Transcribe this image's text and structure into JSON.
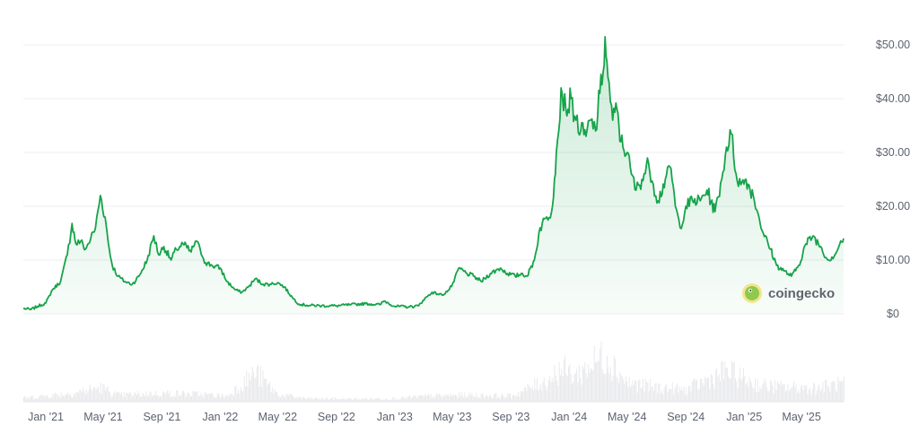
{
  "chart_data": {
    "type": "area",
    "y_axis_side": "right",
    "ylim": [
      0,
      55
    ],
    "y_ticks": [
      {
        "value": 0,
        "label": "$0"
      },
      {
        "value": 10,
        "label": "$10.00"
      },
      {
        "value": 20,
        "label": "$20.00"
      },
      {
        "value": 30,
        "label": "$30.00"
      },
      {
        "value": 40,
        "label": "$40.00"
      },
      {
        "value": 50,
        "label": "$50.00"
      }
    ],
    "x_ticks": [
      {
        "date": "2021-01-01",
        "label": "Jan '21"
      },
      {
        "date": "2021-05-01",
        "label": "May '21"
      },
      {
        "date": "2021-09-01",
        "label": "Sep '21"
      },
      {
        "date": "2022-01-01",
        "label": "Jan '22"
      },
      {
        "date": "2022-05-01",
        "label": "May '22"
      },
      {
        "date": "2022-09-01",
        "label": "Sep '22"
      },
      {
        "date": "2023-01-01",
        "label": "Jan '23"
      },
      {
        "date": "2023-05-01",
        "label": "May '23"
      },
      {
        "date": "2023-09-01",
        "label": "Sep '23"
      },
      {
        "date": "2024-01-01",
        "label": "Jan '24"
      },
      {
        "date": "2024-05-01",
        "label": "May '24"
      },
      {
        "date": "2024-09-01",
        "label": "Sep '24"
      },
      {
        "date": "2025-01-01",
        "label": "Jan '25"
      },
      {
        "date": "2025-05-01",
        "label": "May '25"
      }
    ],
    "xlim": [
      "2020-11-15",
      "2025-07-28"
    ],
    "grid": true,
    "legend": "none",
    "series": [
      {
        "color": "#16a34a",
        "points": [
          [
            "2020-11-15",
            1.0
          ],
          [
            "2020-12-01",
            0.8
          ],
          [
            "2020-12-15",
            1.4
          ],
          [
            "2021-01-01",
            2.0
          ],
          [
            "2021-01-15",
            4.5
          ],
          [
            "2021-02-01",
            6.0
          ],
          [
            "2021-02-15",
            11.0
          ],
          [
            "2021-02-25",
            16.8
          ],
          [
            "2021-03-05",
            13.0
          ],
          [
            "2021-03-15",
            13.5
          ],
          [
            "2021-03-25",
            12.0
          ],
          [
            "2021-04-05",
            14.0
          ],
          [
            "2021-04-15",
            16.0
          ],
          [
            "2021-04-25",
            22.0
          ],
          [
            "2021-05-05",
            18.0
          ],
          [
            "2021-05-12",
            13.0
          ],
          [
            "2021-05-20",
            9.0
          ],
          [
            "2021-06-01",
            7.0
          ],
          [
            "2021-06-15",
            6.0
          ],
          [
            "2021-07-01",
            5.5
          ],
          [
            "2021-07-15",
            7.0
          ],
          [
            "2021-08-01",
            10.0
          ],
          [
            "2021-08-15",
            14.5
          ],
          [
            "2021-08-25",
            11.0
          ],
          [
            "2021-09-05",
            12.5
          ],
          [
            "2021-09-20",
            10.0
          ],
          [
            "2021-10-01",
            12.0
          ],
          [
            "2021-10-15",
            13.0
          ],
          [
            "2021-11-01",
            11.5
          ],
          [
            "2021-11-10",
            13.5
          ],
          [
            "2021-11-20",
            12.0
          ],
          [
            "2021-12-01",
            9.5
          ],
          [
            "2021-12-15",
            9.0
          ],
          [
            "2022-01-01",
            8.5
          ],
          [
            "2022-01-15",
            6.0
          ],
          [
            "2022-02-01",
            4.5
          ],
          [
            "2022-02-15",
            4.0
          ],
          [
            "2022-03-01",
            5.0
          ],
          [
            "2022-03-15",
            6.5
          ],
          [
            "2022-04-01",
            5.5
          ],
          [
            "2022-04-15",
            5.5
          ],
          [
            "2022-05-01",
            5.8
          ],
          [
            "2022-05-15",
            5.0
          ],
          [
            "2022-06-01",
            3.0
          ],
          [
            "2022-06-15",
            1.8
          ],
          [
            "2022-07-01",
            1.6
          ],
          [
            "2022-08-01",
            1.5
          ],
          [
            "2022-09-01",
            1.5
          ],
          [
            "2022-10-01",
            1.7
          ],
          [
            "2022-11-01",
            1.9
          ],
          [
            "2022-12-01",
            1.7
          ],
          [
            "2022-12-10",
            2.4
          ],
          [
            "2023-01-01",
            1.4
          ],
          [
            "2023-02-01",
            1.3
          ],
          [
            "2023-02-20",
            1.5
          ],
          [
            "2023-03-01",
            2.5
          ],
          [
            "2023-03-20",
            4.0
          ],
          [
            "2023-04-10",
            3.5
          ],
          [
            "2023-04-25",
            4.5
          ],
          [
            "2023-05-05",
            6.0
          ],
          [
            "2023-05-15",
            8.5
          ],
          [
            "2023-06-01",
            7.5
          ],
          [
            "2023-06-15",
            7.0
          ],
          [
            "2023-07-01",
            6.0
          ],
          [
            "2023-07-20",
            7.5
          ],
          [
            "2023-08-10",
            8.5
          ],
          [
            "2023-08-25",
            7.5
          ],
          [
            "2023-09-10",
            7.0
          ],
          [
            "2023-09-25",
            7.5
          ],
          [
            "2023-10-05",
            7.0
          ],
          [
            "2023-10-20",
            10.0
          ],
          [
            "2023-11-01",
            16.0
          ],
          [
            "2023-11-15",
            18.0
          ],
          [
            "2023-11-25",
            19.0
          ],
          [
            "2023-12-01",
            25.0
          ],
          [
            "2023-12-05",
            30.0
          ],
          [
            "2023-12-10",
            34.0
          ],
          [
            "2023-12-15",
            42.0
          ],
          [
            "2023-12-25",
            38.0
          ],
          [
            "2024-01-05",
            40.0
          ],
          [
            "2024-01-15",
            36.0
          ],
          [
            "2024-01-25",
            34.0
          ],
          [
            "2024-02-05",
            33.0
          ],
          [
            "2024-02-15",
            36.0
          ],
          [
            "2024-02-25",
            34.0
          ],
          [
            "2024-03-05",
            41.0
          ],
          [
            "2024-03-12",
            45.0
          ],
          [
            "2024-03-16",
            51.5
          ],
          [
            "2024-03-22",
            44.0
          ],
          [
            "2024-04-01",
            36.0
          ],
          [
            "2024-04-10",
            38.0
          ],
          [
            "2024-04-18",
            32.0
          ],
          [
            "2024-05-01",
            30.0
          ],
          [
            "2024-05-10",
            26.0
          ],
          [
            "2024-05-20",
            23.0
          ],
          [
            "2024-06-01",
            25.0
          ],
          [
            "2024-06-15",
            28.0
          ],
          [
            "2024-06-25",
            24.0
          ],
          [
            "2024-07-05",
            21.0
          ],
          [
            "2024-07-20",
            25.0
          ],
          [
            "2024-08-01",
            27.0
          ],
          [
            "2024-08-10",
            20.0
          ],
          [
            "2024-08-20",
            16.0
          ],
          [
            "2024-09-01",
            20.0
          ],
          [
            "2024-09-15",
            21.0
          ],
          [
            "2024-10-01",
            21.0
          ],
          [
            "2024-10-15",
            23.0
          ],
          [
            "2024-11-01",
            19.0
          ],
          [
            "2024-11-15",
            25.0
          ],
          [
            "2024-11-25",
            31.0
          ],
          [
            "2024-12-05",
            33.5
          ],
          [
            "2024-12-15",
            26.0
          ],
          [
            "2024-12-25",
            24.0
          ],
          [
            "2025-01-05",
            25.0
          ],
          [
            "2025-01-20",
            22.0
          ],
          [
            "2025-02-01",
            18.0
          ],
          [
            "2025-02-10",
            15.0
          ],
          [
            "2025-02-25",
            12.0
          ],
          [
            "2025-03-10",
            9.0
          ],
          [
            "2025-03-25",
            8.0
          ],
          [
            "2025-04-10",
            7.0
          ],
          [
            "2025-04-25",
            9.0
          ],
          [
            "2025-05-10",
            13.0
          ],
          [
            "2025-05-25",
            14.5
          ],
          [
            "2025-06-10",
            12.5
          ],
          [
            "2025-06-25",
            10.0
          ],
          [
            "2025-07-10",
            11.0
          ],
          [
            "2025-07-20",
            13.0
          ],
          [
            "2025-07-28",
            14.0
          ]
        ]
      }
    ],
    "volume": {
      "color": "#e6e7ea",
      "relative_levels": [
        [
          "2020-11-15",
          0.08
        ],
        [
          "2021-02-25",
          0.18
        ],
        [
          "2021-04-25",
          0.3
        ],
        [
          "2021-06-01",
          0.14
        ],
        [
          "2021-09-01",
          0.18
        ],
        [
          "2021-11-15",
          0.16
        ],
        [
          "2022-01-15",
          0.12
        ],
        [
          "2022-03-15",
          0.62
        ],
        [
          "2022-05-01",
          0.15
        ],
        [
          "2022-07-01",
          0.07
        ],
        [
          "2022-10-01",
          0.06
        ],
        [
          "2023-01-01",
          0.07
        ],
        [
          "2023-03-15",
          0.12
        ],
        [
          "2023-06-01",
          0.14
        ],
        [
          "2023-09-01",
          0.12
        ],
        [
          "2023-11-15",
          0.45
        ],
        [
          "2023-12-15",
          0.7
        ],
        [
          "2024-01-15",
          0.55
        ],
        [
          "2024-03-16",
          1.0
        ],
        [
          "2024-05-01",
          0.4
        ],
        [
          "2024-07-01",
          0.3
        ],
        [
          "2024-09-01",
          0.25
        ],
        [
          "2024-11-25",
          0.65
        ],
        [
          "2024-12-15",
          0.55
        ],
        [
          "2025-02-01",
          0.35
        ],
        [
          "2025-04-01",
          0.3
        ],
        [
          "2025-06-01",
          0.3
        ],
        [
          "2025-07-28",
          0.38
        ]
      ]
    }
  },
  "watermark": {
    "text": "coingecko",
    "icon": "gecko-logo-icon"
  }
}
